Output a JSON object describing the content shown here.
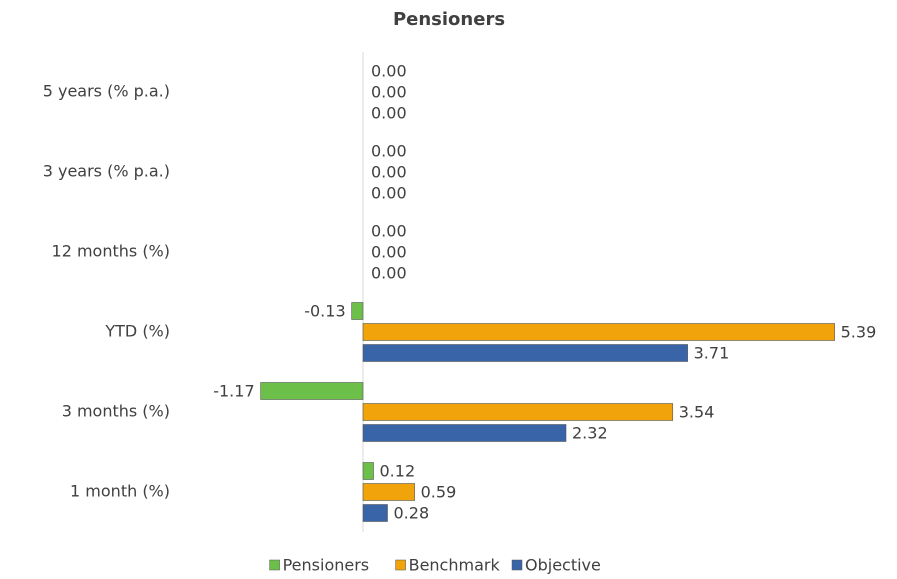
{
  "chart_data": {
    "type": "bar",
    "orientation": "horizontal",
    "title": "Pensioners",
    "categories": [
      "5 years (% p.a.)",
      "3 years (% p.a.)",
      "12 months (%)",
      "YTD (%)",
      "3 months (%)",
      "1 month (%)"
    ],
    "series": [
      {
        "name": "Pensioners",
        "color": "#6cc04a",
        "values": [
          0,
          0,
          0,
          -0.13,
          -1.17,
          0.12
        ],
        "value_labels": [
          "0.00",
          "0.00",
          "0.00",
          "-0.13",
          "-1.17",
          "0.12"
        ]
      },
      {
        "name": "Benchmark",
        "color": "#f0a30a",
        "values": [
          0,
          0,
          0,
          5.39,
          3.54,
          0.59
        ],
        "value_labels": [
          "0.00",
          "0.00",
          "0.00",
          "5.39",
          "3.54",
          "0.59"
        ]
      },
      {
        "name": "Objective",
        "color": "#3a64a8",
        "values": [
          0,
          0,
          0,
          3.71,
          2.32,
          0.28
        ],
        "value_labels": [
          "0.00",
          "0.00",
          "0.00",
          "3.71",
          "2.32",
          "0.28"
        ]
      }
    ],
    "xlim": [
      -2,
      6
    ],
    "legend": "bottom"
  }
}
